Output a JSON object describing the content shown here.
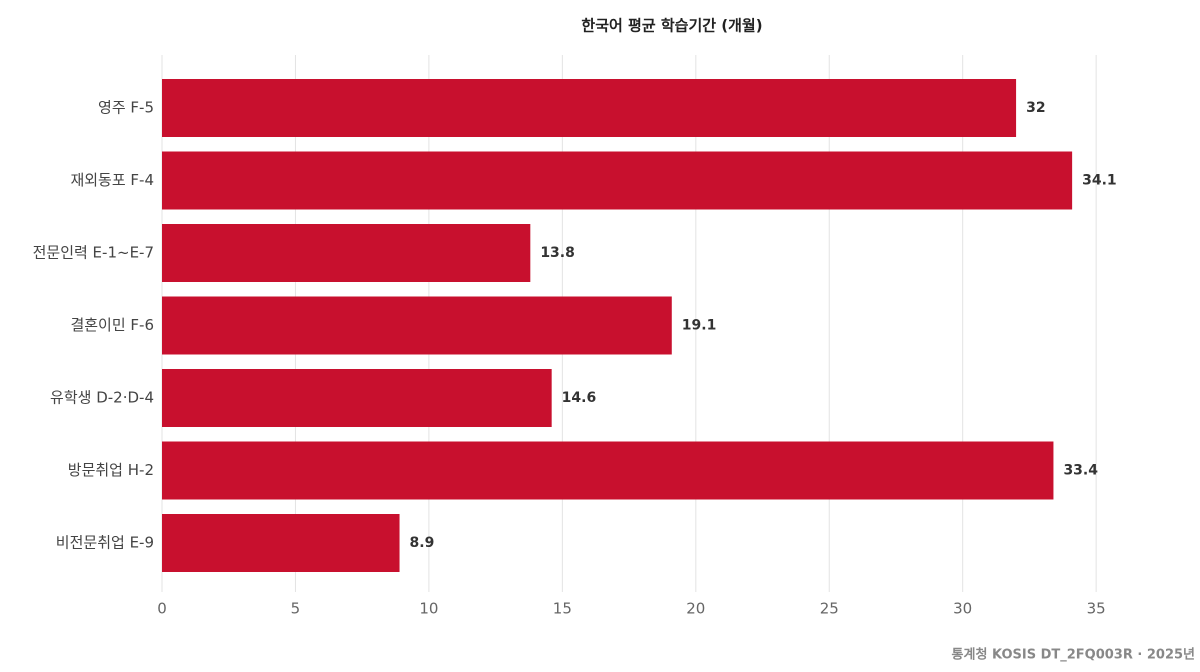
{
  "chart_data": {
    "type": "barh",
    "title": "한국어 평균 학습기간 (개월)",
    "categories": [
      "영주 F-5",
      "재외동포 F-4",
      "전문인력 E-1~E-7",
      "결혼이민 F-6",
      "유학생 D-2·D-4",
      "방문취업 H-2",
      "비전문취업 E-9"
    ],
    "values": [
      32,
      34.1,
      13.8,
      19.1,
      14.6,
      33.4,
      8.9
    ],
    "color": "#c8102e",
    "xlim": [
      0,
      37.5
    ],
    "xticks": [
      0,
      5,
      10,
      15,
      20,
      25,
      30,
      35
    ],
    "grid": true,
    "source": "통계청 KOSIS DT_2FQ003R · 2025년"
  }
}
